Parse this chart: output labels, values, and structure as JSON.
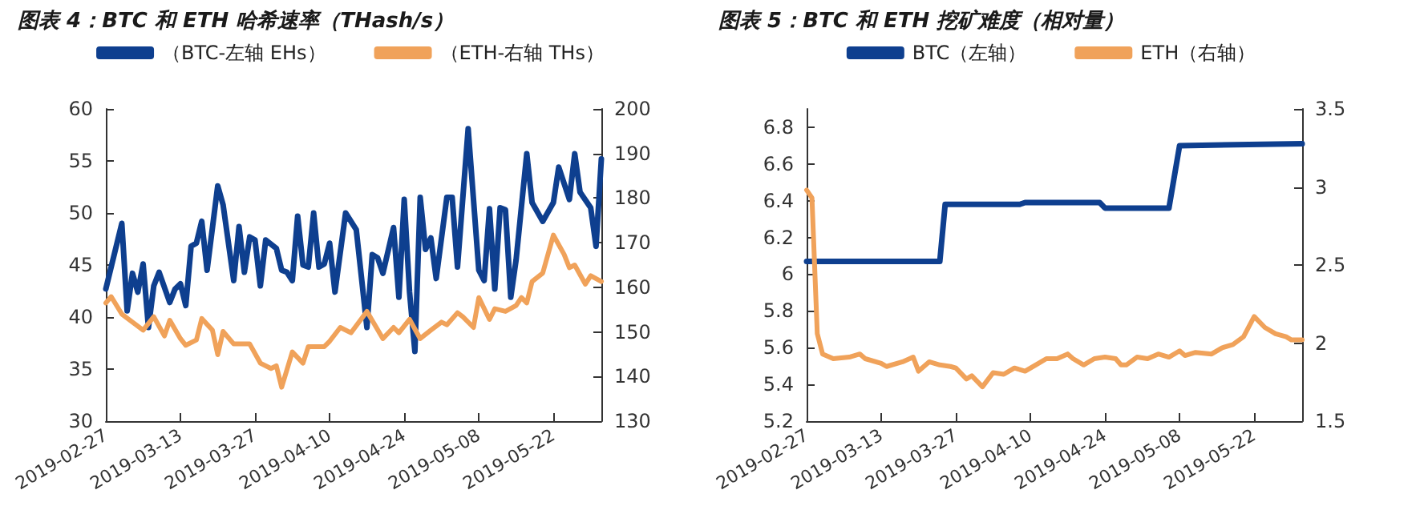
{
  "chart_data": [
    {
      "type": "line",
      "title": "图表 4：BTC 和 ETH 哈希速率（THash/s）",
      "legend": "top",
      "marker": "none",
      "xlim": [
        "2019-02-27",
        "2019-05-31"
      ],
      "xticks": [
        "2019-02-27",
        "2019-03-13",
        "2019-03-27",
        "2019-04-10",
        "2019-04-24",
        "2019-05-08",
        "2019-05-22"
      ],
      "ylim": [
        30,
        60
      ],
      "yticks": [
        30,
        35,
        40,
        45,
        50,
        55,
        60
      ],
      "y2lim": [
        130,
        200
      ],
      "y2ticks": [
        130,
        140,
        150,
        160,
        170,
        180,
        190,
        200
      ],
      "series": [
        {
          "name": "（BTC-左轴 EHs）",
          "color": "#0e3f8f",
          "x": [
            "2019-02-27",
            "2019-03-02",
            "2019-03-03",
            "2019-03-04",
            "2019-03-05",
            "2019-03-06",
            "2019-03-07",
            "2019-03-08",
            "2019-03-09",
            "2019-03-11",
            "2019-03-12",
            "2019-03-13",
            "2019-03-14",
            "2019-03-15",
            "2019-03-16",
            "2019-03-17",
            "2019-03-18",
            "2019-03-20",
            "2019-03-21",
            "2019-03-23",
            "2019-03-24",
            "2019-03-25",
            "2019-03-26",
            "2019-03-27",
            "2019-03-28",
            "2019-03-29",
            "2019-03-31",
            "2019-04-01",
            "2019-04-02",
            "2019-04-03",
            "2019-04-04",
            "2019-04-05",
            "2019-04-06",
            "2019-04-07",
            "2019-04-08",
            "2019-04-09",
            "2019-04-10",
            "2019-04-11",
            "2019-04-13",
            "2019-04-15",
            "2019-04-17",
            "2019-04-18",
            "2019-04-19",
            "2019-04-20",
            "2019-04-22",
            "2019-04-23",
            "2019-04-24",
            "2019-04-25",
            "2019-04-26",
            "2019-04-27",
            "2019-04-28",
            "2019-04-29",
            "2019-04-30",
            "2019-05-02",
            "2019-05-03",
            "2019-05-04",
            "2019-05-06",
            "2019-05-07",
            "2019-05-08",
            "2019-05-09",
            "2019-05-10",
            "2019-05-11",
            "2019-05-12",
            "2019-05-13",
            "2019-05-14",
            "2019-05-15",
            "2019-05-17",
            "2019-05-18",
            "2019-05-20",
            "2019-05-22",
            "2019-05-23",
            "2019-05-25",
            "2019-05-26",
            "2019-05-27",
            "2019-05-29",
            "2019-05-30",
            "2019-05-31"
          ],
          "values": [
            42.7,
            49.0,
            40.6,
            44.2,
            42.4,
            45.1,
            39.0,
            43.0,
            44.3,
            41.4,
            42.7,
            43.2,
            41.1,
            46.8,
            47.1,
            49.2,
            44.5,
            52.6,
            50.8,
            43.5,
            48.7,
            44.3,
            47.7,
            47.4,
            43.0,
            47.4,
            46.6,
            44.5,
            44.3,
            43.5,
            49.7,
            45.0,
            44.8,
            50.0,
            44.8,
            45.1,
            47.1,
            42.4,
            50.0,
            48.4,
            39.0,
            46.0,
            45.7,
            44.2,
            48.6,
            41.9,
            51.3,
            42.4,
            36.7,
            51.5,
            46.5,
            47.6,
            43.7,
            51.5,
            51.5,
            44.8,
            58.1,
            51.3,
            44.5,
            43.5,
            50.4,
            42.7,
            50.5,
            50.3,
            41.9,
            45.5,
            55.7,
            51.0,
            49.2,
            51.0,
            54.4,
            51.3,
            55.7,
            52.0,
            50.5,
            46.8,
            55.2
          ]
        },
        {
          "name": "（ETH-右轴 THs）",
          "color": "#f0a25a",
          "axis": "y2",
          "x": [
            "2019-02-27",
            "2019-02-28",
            "2019-03-02",
            "2019-03-04",
            "2019-03-06",
            "2019-03-08",
            "2019-03-10",
            "2019-03-11",
            "2019-03-13",
            "2019-03-14",
            "2019-03-16",
            "2019-03-17",
            "2019-03-19",
            "2019-03-20",
            "2019-03-21",
            "2019-03-23",
            "2019-03-26",
            "2019-03-28",
            "2019-03-30",
            "2019-03-31",
            "2019-04-01",
            "2019-04-03",
            "2019-04-05",
            "2019-04-06",
            "2019-04-09",
            "2019-04-10",
            "2019-04-12",
            "2019-04-14",
            "2019-04-17",
            "2019-04-20",
            "2019-04-22",
            "2019-04-23",
            "2019-04-25",
            "2019-04-27",
            "2019-04-29",
            "2019-05-01",
            "2019-05-02",
            "2019-05-04",
            "2019-05-05",
            "2019-05-07",
            "2019-05-08",
            "2019-05-10",
            "2019-05-11",
            "2019-05-13",
            "2019-05-15",
            "2019-05-16",
            "2019-05-17",
            "2019-05-18",
            "2019-05-20",
            "2019-05-22",
            "2019-05-24",
            "2019-05-25",
            "2019-05-26",
            "2019-05-28",
            "2019-05-29",
            "2019-05-31"
          ],
          "values": [
            156.5,
            157.9,
            154.0,
            152.2,
            150.4,
            153.4,
            149.1,
            152.6,
            148.5,
            147.0,
            148.2,
            153.0,
            150.4,
            144.9,
            150.1,
            147.3,
            147.3,
            143.0,
            141.8,
            142.4,
            137.6,
            145.5,
            143.0,
            146.7,
            146.7,
            147.9,
            151.0,
            149.8,
            154.6,
            148.5,
            151.0,
            149.8,
            152.8,
            148.5,
            150.4,
            152.2,
            151.6,
            154.3,
            153.4,
            151.0,
            157.7,
            152.8,
            155.2,
            154.6,
            155.9,
            157.7,
            156.5,
            161.3,
            163.2,
            171.7,
            167.4,
            164.4,
            165.0,
            160.7,
            162.6,
            161.3
          ]
        }
      ]
    },
    {
      "type": "line",
      "title": "图表 5：BTC 和 ETH 挖矿难度（相对量）",
      "legend": "top",
      "marker": "none",
      "xlim": [
        "2019-02-27",
        "2019-05-31"
      ],
      "xticks": [
        "2019-02-27",
        "2019-03-13",
        "2019-03-27",
        "2019-04-10",
        "2019-04-24",
        "2019-05-08",
        "2019-05-22"
      ],
      "ylim": [
        5.2,
        6.9
      ],
      "yticks": [
        5.2,
        5.4,
        5.6,
        5.8,
        6,
        6.2,
        6.4,
        6.6,
        6.8
      ],
      "y2lim": [
        1.5,
        3.5
      ],
      "y2ticks": [
        1.5,
        2,
        2.5,
        3,
        3.5
      ],
      "series": [
        {
          "name": "BTC（左轴）",
          "color": "#0e3f8f",
          "x": [
            "2019-02-27",
            "2019-03-24",
            "2019-03-25",
            "2019-04-08",
            "2019-04-09",
            "2019-04-23",
            "2019-04-24",
            "2019-05-06",
            "2019-05-08",
            "2019-05-31"
          ],
          "values": [
            6.07,
            6.07,
            6.38,
            6.38,
            6.39,
            6.39,
            6.36,
            6.36,
            6.7,
            6.71
          ]
        },
        {
          "name": "ETH（右轴）",
          "color": "#f0a25a",
          "axis": "y2",
          "x": [
            "2019-02-27",
            "2019-02-28",
            "2019-03-01",
            "2019-03-02",
            "2019-03-04",
            "2019-03-07",
            "2019-03-09",
            "2019-03-10",
            "2019-03-13",
            "2019-03-14",
            "2019-03-17",
            "2019-03-19",
            "2019-03-20",
            "2019-03-22",
            "2019-03-24",
            "2019-03-26",
            "2019-03-27",
            "2019-03-29",
            "2019-03-30",
            "2019-04-01",
            "2019-04-03",
            "2019-04-05",
            "2019-04-07",
            "2019-04-09",
            "2019-04-11",
            "2019-04-13",
            "2019-04-15",
            "2019-04-17",
            "2019-04-18",
            "2019-04-20",
            "2019-04-22",
            "2019-04-24",
            "2019-04-26",
            "2019-04-27",
            "2019-04-28",
            "2019-04-30",
            "2019-05-02",
            "2019-05-04",
            "2019-05-06",
            "2019-05-08",
            "2019-05-09",
            "2019-05-11",
            "2019-05-14",
            "2019-05-16",
            "2019-05-18",
            "2019-05-20",
            "2019-05-22",
            "2019-05-24",
            "2019-05-26",
            "2019-05-28",
            "2019-05-29",
            "2019-05-31"
          ],
          "values": [
            2.98,
            2.93,
            2.06,
            1.93,
            1.9,
            1.91,
            1.93,
            1.9,
            1.87,
            1.85,
            1.88,
            1.91,
            1.82,
            1.88,
            1.86,
            1.85,
            1.84,
            1.77,
            1.79,
            1.72,
            1.81,
            1.8,
            1.84,
            1.82,
            1.86,
            1.9,
            1.9,
            1.93,
            1.9,
            1.86,
            1.9,
            1.91,
            1.9,
            1.86,
            1.86,
            1.91,
            1.9,
            1.93,
            1.91,
            1.95,
            1.92,
            1.94,
            1.93,
            1.97,
            1.99,
            2.04,
            2.17,
            2.1,
            2.06,
            2.04,
            2.02,
            2.02
          ]
        }
      ]
    }
  ]
}
